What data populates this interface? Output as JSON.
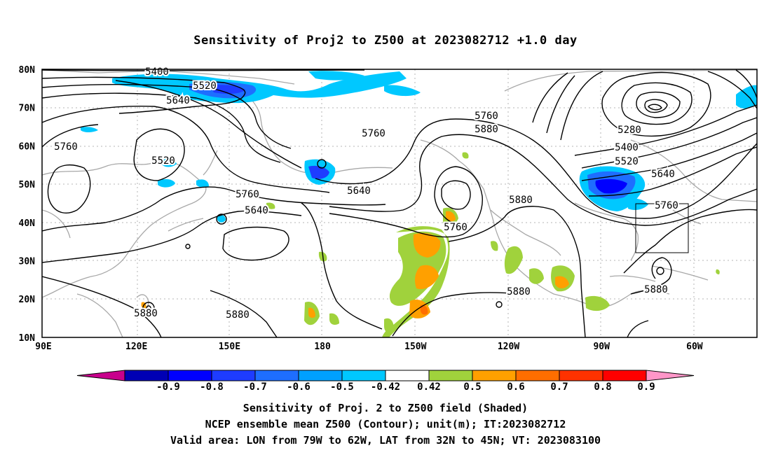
{
  "title": "Sensitivity of Proj2 to Z500 at 2023082712 +1.0 day",
  "map": {
    "lon_labels": [
      "90E",
      "120E",
      "150E",
      "180",
      "150W",
      "120W",
      "90W",
      "60W"
    ],
    "lat_labels": [
      "80N",
      "70N",
      "60N",
      "50N",
      "40N",
      "30N",
      "20N",
      "10N"
    ],
    "contour_labels": [
      "5400",
      "5520",
      "5640",
      "5760",
      "5760",
      "5520",
      "5640",
      "5760",
      "5640",
      "5760",
      "5880",
      "5760",
      "5880",
      "5880",
      "5880",
      "5280",
      "5400",
      "5520",
      "5640",
      "5760",
      "5880",
      "5880"
    ]
  },
  "colorbar": {
    "ticks": [
      "-0.9",
      "-0.8",
      "-0.7",
      "-0.6",
      "-0.5",
      "-0.42",
      "0.42",
      "0.5",
      "0.6",
      "0.7",
      "0.8",
      "0.9"
    ],
    "colors": [
      "#c8008c",
      "#0000b4",
      "#0000ff",
      "#1e3cff",
      "#1e6eff",
      "#00a0ff",
      "#00c8ff",
      "#ffffff",
      "#a0d23c",
      "#ffa000",
      "#ff6e00",
      "#ff3200",
      "#ff0000",
      "#ff96c8"
    ]
  },
  "captions": [
    "Sensitivity of Proj. 2 to Z500 field (Shaded)",
    "NCEP ensemble mean Z500 (Contour); unit(m); IT:2023082712",
    "Valid area: LON from 79W to 62W, LAT from 32N to 45N; VT: 2023083100"
  ]
}
